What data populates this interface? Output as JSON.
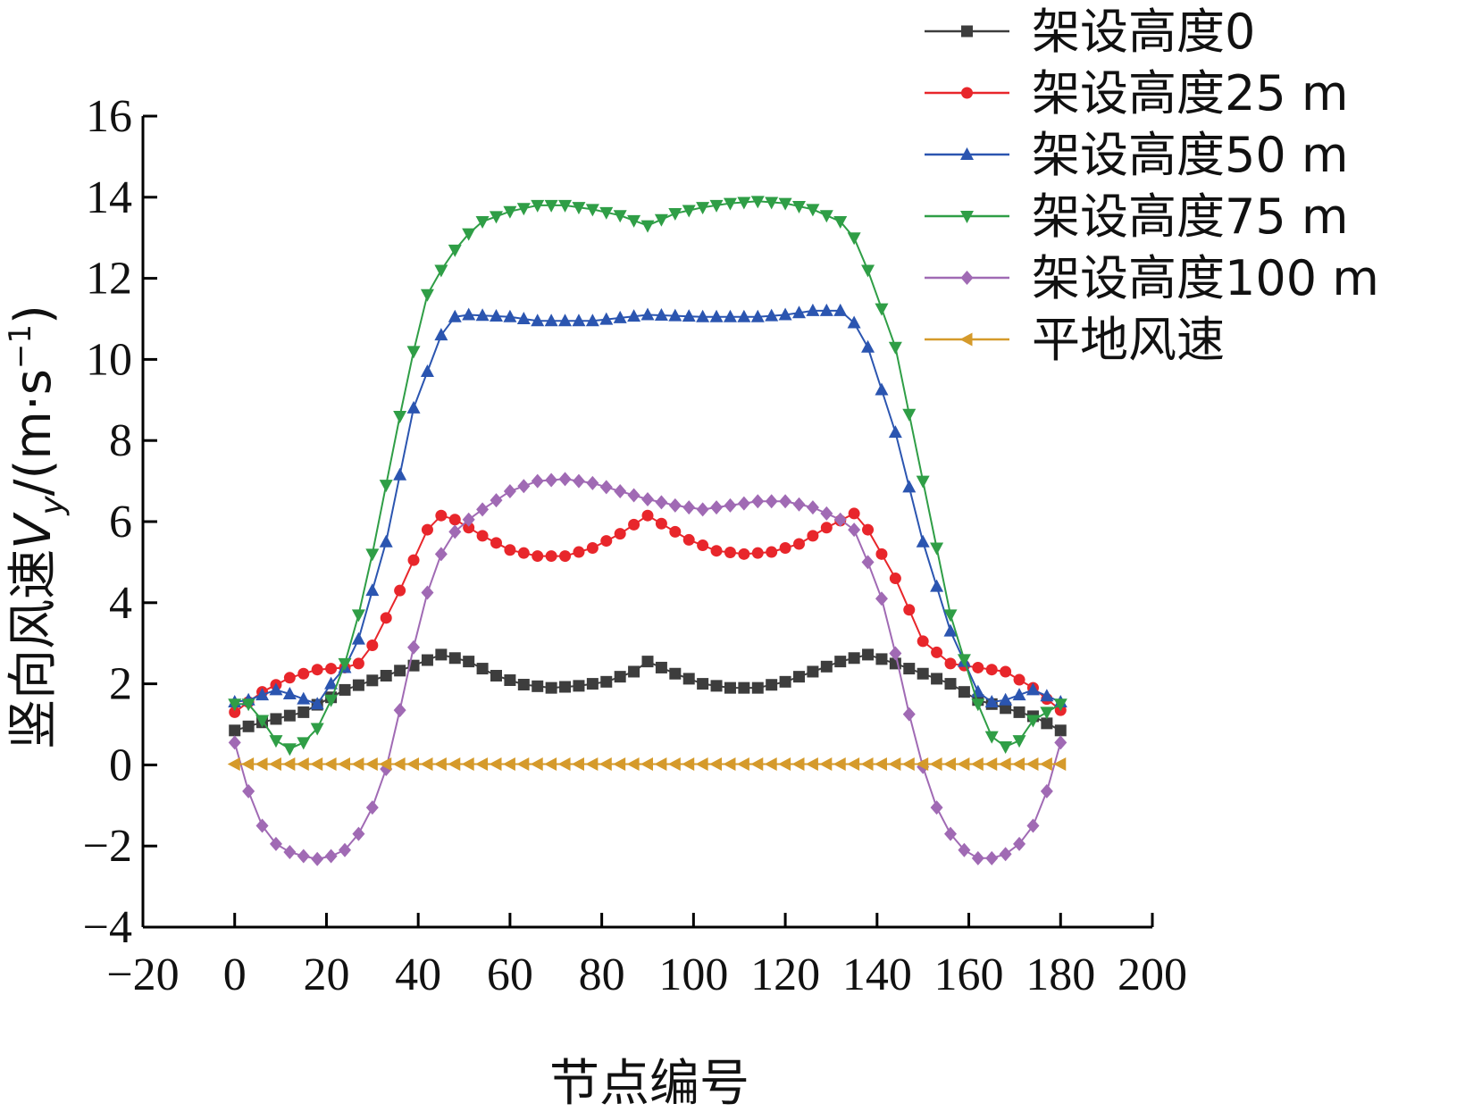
{
  "chart_data": {
    "type": "line",
    "title": "",
    "xlabel": "节点编号",
    "ylabel": {
      "prefix": "竖向风速",
      "var": "V",
      "sub": "y",
      "mid": "/(m·s",
      "sup": "−1",
      "suffix": ")"
    },
    "xlim": [
      -20,
      200
    ],
    "ylim": [
      -4,
      16
    ],
    "xticks": [
      -20,
      0,
      20,
      40,
      60,
      80,
      100,
      120,
      140,
      160,
      180,
      200
    ],
    "xtick_labels": [
      "−20",
      "0",
      "20",
      "40",
      "60",
      "80",
      "100",
      "120",
      "140",
      "160",
      "180",
      "200"
    ],
    "yticks": [
      -4,
      -2,
      0,
      2,
      4,
      6,
      8,
      10,
      12,
      14,
      16
    ],
    "ytick_labels": [
      "−4",
      "−2",
      "0",
      "2",
      "4",
      "6",
      "8",
      "10",
      "12",
      "14",
      "16"
    ],
    "grid": false,
    "legend_position": "top-right",
    "x_step": 3,
    "series": [
      {
        "name": "架设高度0",
        "color": "#3d3d3d",
        "marker": "square",
        "anchors": [
          [
            0,
            0.85
          ],
          [
            6,
            1.05
          ],
          [
            15,
            1.3
          ],
          [
            24,
            1.85
          ],
          [
            33,
            2.2
          ],
          [
            39,
            2.45
          ],
          [
            45,
            2.72
          ],
          [
            51,
            2.55
          ],
          [
            57,
            2.2
          ],
          [
            63,
            1.98
          ],
          [
            69,
            1.9
          ],
          [
            75,
            1.95
          ],
          [
            81,
            2.05
          ],
          [
            87,
            2.3
          ],
          [
            90,
            2.55
          ],
          [
            96,
            2.25
          ],
          [
            102,
            2.0
          ],
          [
            108,
            1.9
          ],
          [
            114,
            1.9
          ],
          [
            120,
            2.05
          ],
          [
            126,
            2.3
          ],
          [
            132,
            2.55
          ],
          [
            138,
            2.72
          ],
          [
            144,
            2.5
          ],
          [
            150,
            2.25
          ],
          [
            156,
            2.0
          ],
          [
            162,
            1.6
          ],
          [
            168,
            1.4
          ],
          [
            174,
            1.2
          ],
          [
            180,
            0.85
          ]
        ]
      },
      {
        "name": "架设高度25 m",
        "color": "#e8262b",
        "marker": "circle",
        "anchors": [
          [
            0,
            1.3
          ],
          [
            6,
            1.8
          ],
          [
            12,
            2.15
          ],
          [
            18,
            2.35
          ],
          [
            24,
            2.4
          ],
          [
            27,
            2.5
          ],
          [
            30,
            2.95
          ],
          [
            36,
            4.3
          ],
          [
            42,
            5.8
          ],
          [
            45,
            6.15
          ],
          [
            48,
            6.05
          ],
          [
            54,
            5.65
          ],
          [
            60,
            5.3
          ],
          [
            66,
            5.15
          ],
          [
            72,
            5.15
          ],
          [
            78,
            5.35
          ],
          [
            84,
            5.7
          ],
          [
            90,
            6.15
          ],
          [
            93,
            5.95
          ],
          [
            99,
            5.55
          ],
          [
            105,
            5.28
          ],
          [
            111,
            5.2
          ],
          [
            117,
            5.25
          ],
          [
            123,
            5.45
          ],
          [
            129,
            5.85
          ],
          [
            135,
            6.2
          ],
          [
            138,
            5.8
          ],
          [
            144,
            4.6
          ],
          [
            150,
            3.05
          ],
          [
            156,
            2.5
          ],
          [
            162,
            2.4
          ],
          [
            168,
            2.3
          ],
          [
            174,
            1.9
          ],
          [
            180,
            1.35
          ]
        ]
      },
      {
        "name": "架设高度50 m",
        "color": "#2b55b0",
        "marker": "triangle-up",
        "anchors": [
          [
            0,
            1.55
          ],
          [
            3,
            1.6
          ],
          [
            9,
            1.85
          ],
          [
            12,
            1.75
          ],
          [
            18,
            1.5
          ],
          [
            21,
            2.0
          ],
          [
            24,
            2.4
          ],
          [
            27,
            3.1
          ],
          [
            33,
            5.5
          ],
          [
            39,
            8.8
          ],
          [
            45,
            10.6
          ],
          [
            48,
            11.05
          ],
          [
            51,
            11.1
          ],
          [
            60,
            11.05
          ],
          [
            66,
            10.95
          ],
          [
            78,
            10.95
          ],
          [
            90,
            11.1
          ],
          [
            102,
            11.05
          ],
          [
            114,
            11.05
          ],
          [
            120,
            11.1
          ],
          [
            126,
            11.2
          ],
          [
            132,
            11.2
          ],
          [
            135,
            10.9
          ],
          [
            138,
            10.3
          ],
          [
            144,
            8.2
          ],
          [
            150,
            5.5
          ],
          [
            156,
            3.3
          ],
          [
            162,
            1.8
          ],
          [
            165,
            1.55
          ],
          [
            168,
            1.6
          ],
          [
            174,
            1.85
          ],
          [
            180,
            1.55
          ]
        ]
      },
      {
        "name": "架设高度75 m",
        "color": "#2f9e46",
        "marker": "triangle-down",
        "anchors": [
          [
            0,
            1.5
          ],
          [
            3,
            1.5
          ],
          [
            6,
            1.1
          ],
          [
            9,
            0.6
          ],
          [
            12,
            0.4
          ],
          [
            15,
            0.55
          ],
          [
            18,
            0.9
          ],
          [
            21,
            1.6
          ],
          [
            24,
            2.5
          ],
          [
            27,
            3.7
          ],
          [
            30,
            5.2
          ],
          [
            33,
            6.9
          ],
          [
            36,
            8.6
          ],
          [
            39,
            10.2
          ],
          [
            42,
            11.6
          ],
          [
            45,
            12.2
          ],
          [
            48,
            12.7
          ],
          [
            51,
            13.1
          ],
          [
            54,
            13.4
          ],
          [
            60,
            13.65
          ],
          [
            66,
            13.8
          ],
          [
            72,
            13.8
          ],
          [
            78,
            13.7
          ],
          [
            84,
            13.55
          ],
          [
            90,
            13.3
          ],
          [
            96,
            13.6
          ],
          [
            102,
            13.75
          ],
          [
            108,
            13.85
          ],
          [
            114,
            13.9
          ],
          [
            120,
            13.85
          ],
          [
            126,
            13.7
          ],
          [
            132,
            13.4
          ],
          [
            135,
            13.0
          ],
          [
            138,
            12.2
          ],
          [
            144,
            10.3
          ],
          [
            150,
            7.0
          ],
          [
            156,
            3.7
          ],
          [
            162,
            1.5
          ],
          [
            165,
            0.7
          ],
          [
            168,
            0.45
          ],
          [
            171,
            0.6
          ],
          [
            174,
            1.1
          ],
          [
            180,
            1.5
          ]
        ]
      },
      {
        "name": "架设高度100 m",
        "color": "#a06ab4",
        "marker": "diamond",
        "anchors": [
          [
            0,
            0.55
          ],
          [
            3,
            -0.65
          ],
          [
            6,
            -1.5
          ],
          [
            9,
            -1.95
          ],
          [
            12,
            -2.15
          ],
          [
            15,
            -2.25
          ],
          [
            18,
            -2.32
          ],
          [
            21,
            -2.25
          ],
          [
            24,
            -2.1
          ],
          [
            27,
            -1.7
          ],
          [
            30,
            -1.05
          ],
          [
            33,
            -0.1
          ],
          [
            36,
            1.35
          ],
          [
            39,
            2.9
          ],
          [
            42,
            4.25
          ],
          [
            45,
            5.2
          ],
          [
            48,
            5.75
          ],
          [
            51,
            6.05
          ],
          [
            54,
            6.3
          ],
          [
            60,
            6.75
          ],
          [
            66,
            7.0
          ],
          [
            72,
            7.05
          ],
          [
            78,
            6.95
          ],
          [
            84,
            6.75
          ],
          [
            90,
            6.55
          ],
          [
            96,
            6.4
          ],
          [
            102,
            6.3
          ],
          [
            108,
            6.4
          ],
          [
            114,
            6.5
          ],
          [
            120,
            6.5
          ],
          [
            126,
            6.35
          ],
          [
            132,
            6.05
          ],
          [
            135,
            5.8
          ],
          [
            138,
            5.0
          ],
          [
            141,
            4.1
          ],
          [
            144,
            2.75
          ],
          [
            147,
            1.25
          ],
          [
            150,
            -0.05
          ],
          [
            153,
            -1.05
          ],
          [
            156,
            -1.7
          ],
          [
            159,
            -2.1
          ],
          [
            162,
            -2.3
          ],
          [
            165,
            -2.3
          ],
          [
            168,
            -2.2
          ],
          [
            171,
            -1.95
          ],
          [
            174,
            -1.5
          ],
          [
            177,
            -0.65
          ],
          [
            180,
            0.55
          ]
        ]
      },
      {
        "name": "平地风速",
        "color": "#d59a2b",
        "marker": "triangle-left",
        "anchors": [
          [
            0,
            0.02
          ],
          [
            180,
            0.02
          ]
        ]
      }
    ]
  }
}
